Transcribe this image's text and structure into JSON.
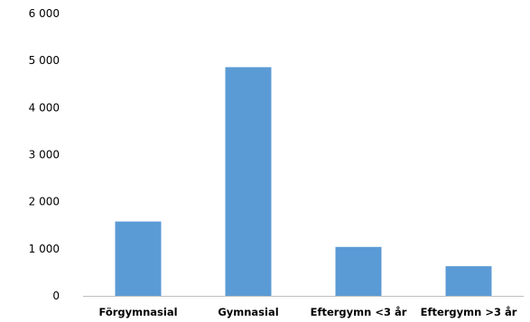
{
  "chart_data": {
    "type": "bar",
    "categories": [
      "Förgymnasial",
      "Gymnasial",
      "Eftergymn <3 år",
      "Eftergymn >3 år"
    ],
    "values": [
      1580,
      4860,
      1040,
      630
    ],
    "ylim": [
      0,
      6000
    ],
    "yticks": [
      0,
      1000,
      2000,
      3000,
      4000,
      5000,
      6000
    ],
    "ytick_labels": [
      "0",
      "1 000",
      "2 000",
      "3 000",
      "4 000",
      "5 000",
      "6 000"
    ],
    "bar_color": "#5b9bd5",
    "axis_color": "#bfbfbf",
    "grid": false,
    "legend": "none"
  }
}
